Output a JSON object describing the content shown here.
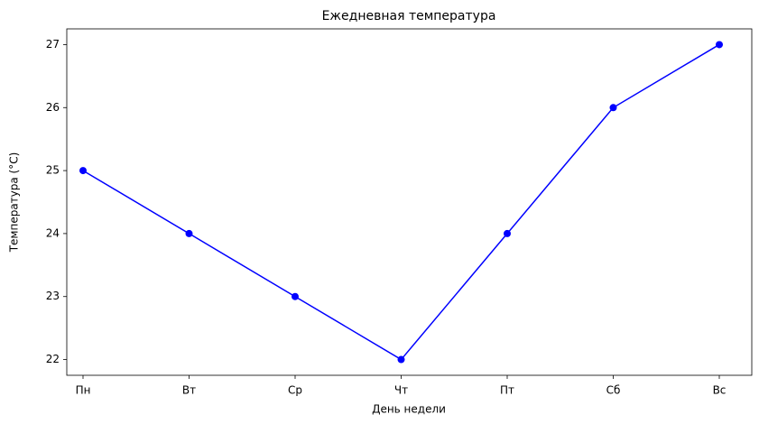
{
  "chart_data": {
    "type": "line",
    "title": "Ежедневная температура",
    "x_label": "День недели",
    "y_label": "Температура (°C)",
    "categories": [
      "Пн",
      "Вт",
      "Ср",
      "Чт",
      "Пт",
      "Сб",
      "Вс"
    ],
    "series": [
      {
        "name": "Температура",
        "color": "#0000ff",
        "values": [
          25,
          24,
          23,
          22,
          24,
          26,
          27
        ]
      }
    ],
    "ylim": [
      21.75,
      27.25
    ],
    "yticks": [
      22,
      23,
      24,
      25,
      26,
      27
    ],
    "grid": false,
    "marker": "circle"
  }
}
